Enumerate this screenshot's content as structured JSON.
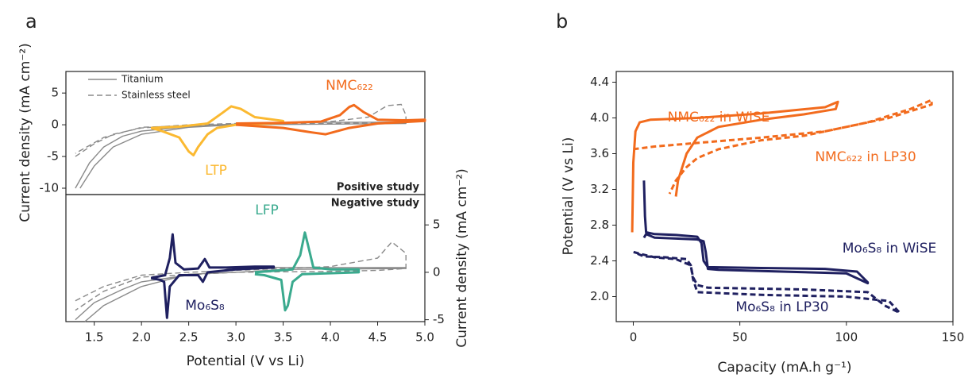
{
  "chart_data": [
    {
      "type": "line",
      "panel": "a",
      "ylabel": "Current density (mA cm⁻²)",
      "annotation": "Positive study",
      "xlim": [
        1.2,
        5.0
      ],
      "ylim": [
        -11,
        8.4
      ],
      "yticks": [
        -10,
        -5,
        0,
        5
      ],
      "y_axis_side": "left",
      "legend": "upper left",
      "series": [
        {
          "name": "Titanium",
          "color": "#8a8a8a",
          "style": "solid",
          "x": [
            1.3,
            1.45,
            1.6,
            1.8,
            2.0,
            2.5,
            3.0,
            3.5,
            4.0,
            4.5,
            4.8,
            4.8,
            4.0,
            3.0,
            2.5,
            2.0,
            1.7,
            1.5,
            1.35
          ],
          "values": [
            -10,
            -6,
            -3.5,
            -1.8,
            -1,
            -0.3,
            0.1,
            0.3,
            0.4,
            0.4,
            0.5,
            0.2,
            0.1,
            0,
            -0.4,
            -1.5,
            -3.5,
            -6.5,
            -10
          ]
        },
        {
          "name": "Stainless steel",
          "color": "#8a8a8a",
          "style": "dashed",
          "x": [
            1.3,
            1.5,
            1.7,
            2.0,
            2.5,
            3.0,
            3.5,
            4.0,
            4.4,
            4.6,
            4.75,
            4.8,
            4.8,
            4.5,
            4.0,
            3.0,
            2.0,
            1.6,
            1.3
          ],
          "values": [
            -5,
            -3,
            -1.5,
            -0.5,
            0,
            0.2,
            0.3,
            0.5,
            1.2,
            3,
            3.2,
            1.5,
            0.5,
            0.3,
            0.2,
            0.1,
            -0.4,
            -2,
            -4.5
          ]
        },
        {
          "name": "LTP",
          "color": "#fbb931",
          "style": "solid",
          "x": [
            2.1,
            2.4,
            2.7,
            2.85,
            2.95,
            3.05,
            3.2,
            3.5,
            3.5,
            3.0,
            2.8,
            2.7,
            2.6,
            2.55,
            2.5,
            2.4,
            2.2,
            2.1
          ],
          "values": [
            -0.5,
            -0.3,
            0.2,
            1.8,
            2.9,
            2.5,
            1.2,
            0.6,
            0.3,
            0,
            -0.5,
            -1.5,
            -3.5,
            -4.8,
            -4.2,
            -2,
            -0.9,
            -0.5
          ]
        },
        {
          "name": "NMC₆₂₂",
          "color": "#f26b1d",
          "style": "solid",
          "x": [
            3.0,
            3.5,
            3.9,
            4.1,
            4.2,
            4.25,
            4.35,
            4.5,
            4.8,
            5.0,
            5.0,
            4.5,
            4.2,
            3.95,
            3.8,
            3.5,
            3.0
          ],
          "values": [
            0.2,
            0.3,
            0.5,
            1.5,
            2.8,
            3.1,
            2,
            0.8,
            0.7,
            0.8,
            0.6,
            0.2,
            -0.5,
            -1.5,
            -1.2,
            -0.5,
            0
          ]
        }
      ]
    },
    {
      "type": "line",
      "xlabel": "Potential (V vs Li)",
      "ylabel": "Current density (mA cm⁻²)",
      "annotation": "Negative study",
      "xlim": [
        1.2,
        5.0
      ],
      "ylim": [
        -5.2,
        8.2
      ],
      "xticks": [
        1.5,
        {
          "value": 2,
          "label": "2.0"
        },
        2.5,
        {
          "value": 3,
          "label": "3.0"
        },
        3.5,
        {
          "value": 4,
          "label": "4.0"
        },
        4.5,
        {
          "value": 5,
          "label": "5.0"
        }
      ],
      "yticks": [
        -5,
        0,
        5
      ],
      "y_axis_side": "right",
      "series": [
        {
          "color": "#8a8a8a",
          "style": "solid",
          "x": [
            1.3,
            1.5,
            1.8,
            2.0,
            2.5,
            2.8,
            3.0,
            3.5,
            4.5,
            4.8,
            4.8,
            3.5,
            3.0,
            2.5,
            2.0,
            1.6,
            1.4
          ],
          "values": [
            -5,
            -3.2,
            -1.8,
            -1,
            -0.3,
            0,
            0.6,
            0.5,
            0.5,
            0.5,
            0.4,
            0.3,
            0,
            -0.2,
            -1.5,
            -3.5,
            -5.2
          ]
        },
        {
          "color": "#8a8a8a",
          "style": "dashed",
          "x": [
            1.3,
            1.6,
            2.0,
            2.5,
            3.0,
            3.5,
            4.0,
            4.5,
            4.65,
            4.8,
            4.8,
            4.5,
            4.0,
            3.0,
            2.0,
            1.6,
            1.3
          ],
          "values": [
            -3,
            -1.5,
            -0.3,
            0,
            0.2,
            0.4,
            0.6,
            1.5,
            3.2,
            2,
            0.4,
            0.2,
            0.1,
            0,
            -0.5,
            -2,
            -4
          ]
        },
        {
          "name": "Mo₆S₈",
          "color": "#1f2060",
          "style": "solid",
          "x": [
            2.1,
            2.25,
            2.3,
            2.33,
            2.36,
            2.45,
            2.6,
            2.67,
            2.72,
            2.9,
            3.2,
            3.4,
            3.4,
            3.0,
            2.7,
            2.65,
            2.6,
            2.4,
            2.3,
            2.27,
            2.24,
            2.2,
            2.1
          ],
          "values": [
            -0.6,
            -0.3,
            1.5,
            4,
            1,
            0.3,
            0.4,
            1.4,
            0.5,
            0.5,
            0.6,
            0.6,
            0.5,
            0.3,
            0,
            -1,
            -0.3,
            -0.3,
            -1.5,
            -4.8,
            -1,
            -0.8,
            -0.6
          ]
        },
        {
          "name": "LFP",
          "color": "#3aaa8e",
          "style": "solid",
          "x": [
            3.2,
            3.6,
            3.68,
            3.73,
            3.76,
            3.82,
            4.0,
            4.3,
            4.3,
            3.7,
            3.6,
            3.55,
            3.52,
            3.48,
            3.3,
            3.2
          ],
          "values": [
            0,
            0.3,
            1.8,
            4.2,
            3,
            0.5,
            0.3,
            0.3,
            0,
            -0.2,
            -1,
            -3.5,
            -4,
            -0.8,
            -0.3,
            -0.2
          ]
        }
      ]
    },
    {
      "type": "line",
      "panel": "b",
      "xlabel": "Capacity (mA.h g⁻¹)",
      "ylabel": "Potential (V vs Li)",
      "xlim": [
        -8,
        150
      ],
      "ylim": [
        1.72,
        4.52
      ],
      "xticks": [
        0,
        50,
        100,
        150
      ],
      "yticks": [
        {
          "value": 2,
          "label": "2.0"
        },
        2.4,
        2.8,
        3.2,
        3.6,
        {
          "value": 4,
          "label": "4.0"
        },
        4.4
      ],
      "y_axis_side": "left",
      "series": [
        {
          "name": "NMC₆₂₂ in WiSE",
          "color": "#f26b1d",
          "style": "solid",
          "x": [
            -0.5,
            0,
            1,
            3,
            8,
            30,
            60,
            90,
            96,
            96,
            95,
            80,
            60,
            40,
            30,
            25,
            21,
            20
          ],
          "values": [
            2.72,
            3.5,
            3.85,
            3.95,
            3.98,
            4.0,
            4.05,
            4.12,
            4.18,
            4.18,
            4.1,
            4.04,
            3.98,
            3.9,
            3.78,
            3.6,
            3.3,
            3.12
          ]
        },
        {
          "name": "NMC₆₂₂ in LP30",
          "color": "#f26b1d",
          "style": "dashed",
          "x": [
            0,
            10,
            30,
            60,
            90,
            110,
            130,
            140,
            140,
            120,
            100,
            80,
            60,
            40,
            30,
            25,
            20,
            17
          ],
          "values": [
            3.65,
            3.68,
            3.72,
            3.78,
            3.85,
            3.95,
            4.1,
            4.2,
            4.15,
            4.0,
            3.9,
            3.8,
            3.75,
            3.65,
            3.55,
            3.45,
            3.3,
            3.15
          ]
        },
        {
          "name": "Mo₆S₈ in WiSE",
          "color": "#1f2060",
          "style": "solid",
          "x": [
            5,
            5.5,
            6,
            10,
            20,
            30,
            32,
            33,
            35,
            60,
            90,
            105,
            110,
            110,
            100,
            70,
            40,
            35,
            34,
            33,
            30,
            20,
            10,
            6,
            5
          ],
          "values": [
            3.3,
            2.9,
            2.72,
            2.7,
            2.69,
            2.67,
            2.6,
            2.4,
            2.33,
            2.32,
            2.31,
            2.28,
            2.16,
            2.15,
            2.26,
            2.28,
            2.3,
            2.31,
            2.5,
            2.62,
            2.64,
            2.65,
            2.66,
            2.7,
            2.66
          ]
        },
        {
          "name": "Mo₆S₈ in LP30",
          "color": "#1f2060",
          "style": "dashed",
          "x": [
            2,
            5,
            15,
            25,
            27,
            28,
            30,
            35,
            80,
            110,
            118,
            125,
            120,
            100,
            60,
            30,
            28,
            27,
            20,
            10,
            3,
            0
          ],
          "values": [
            2.48,
            2.45,
            2.44,
            2.42,
            2.35,
            2.22,
            2.13,
            2.1,
            2.08,
            2.05,
            1.9,
            1.82,
            1.95,
            2.0,
            2.02,
            2.05,
            2.2,
            2.35,
            2.42,
            2.44,
            2.48,
            2.5
          ]
        }
      ]
    }
  ]
}
